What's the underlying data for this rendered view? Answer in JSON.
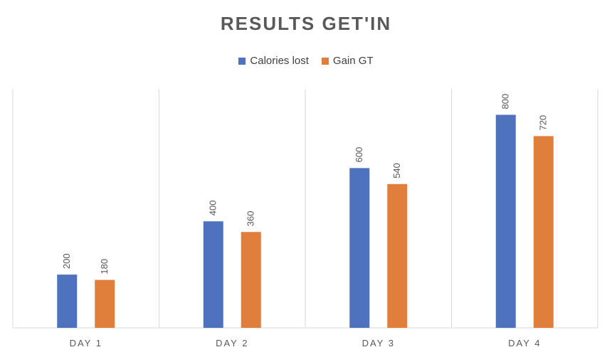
{
  "chart_data": {
    "type": "bar",
    "title": "RESULTS GET'IN",
    "categories": [
      "DAY 1",
      "DAY 2",
      "DAY 3",
      "DAY 4"
    ],
    "series": [
      {
        "name": "Calories lost",
        "color": "#4E72BE",
        "values": [
          200,
          400,
          600,
          800
        ]
      },
      {
        "name": "Gain GT",
        "color": "#E07F3C",
        "values": [
          180,
          360,
          540,
          720
        ]
      }
    ],
    "ylim": [
      0,
      900
    ],
    "legend_position": "top",
    "gridlines": "vertical category separators",
    "data_labels": "rotated vertical above bars"
  }
}
